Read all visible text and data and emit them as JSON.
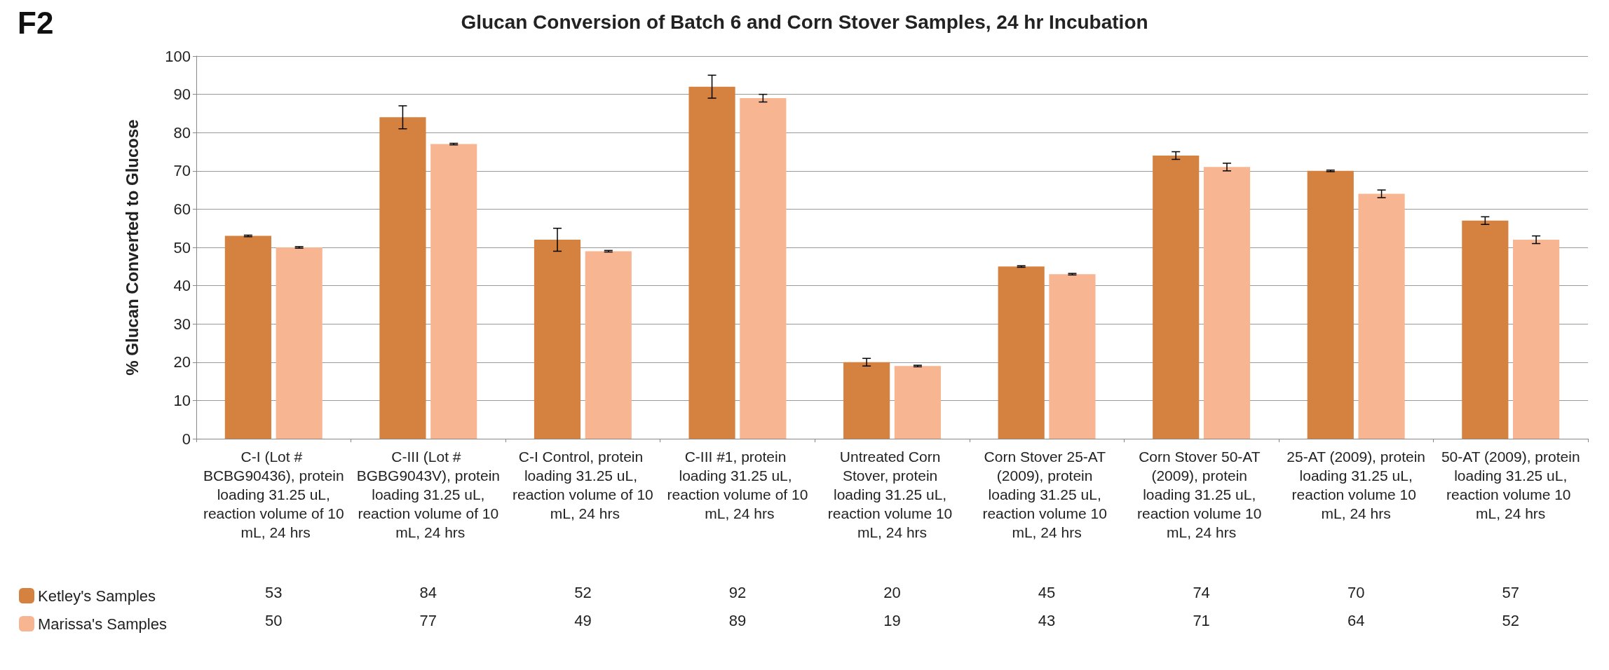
{
  "chart_data": {
    "type": "bar",
    "title": "Glucan Conversion of Batch 6 and Corn Stover Samples, 24 hr Incubation",
    "ylabel": "% Glucan Converted to Glucose",
    "annotations": [
      "F2"
    ],
    "categories": [
      "C-I (Lot # BCBG90436), protein loading 31.25 uL, reaction volume of 10 mL, 24 hrs",
      "C-III (Lot # BGBG9043V), protein loading 31.25 uL, reaction volume of 10 mL, 24 hrs",
      "C-I Control, protein loading 31.25 uL, reaction volume of 10 mL, 24 hrs",
      "C-III #1, protein loading 31.25 uL, reaction volume of 10 mL, 24 hrs",
      "Untreated Corn Stover, protein loading 31.25 uL, reaction volume 10 mL, 24 hrs",
      "Corn Stover 25-AT (2009), protein loading 31.25 uL, reaction volume 10 mL, 24 hrs",
      "Corn Stover 50-AT (2009), protein loading 31.25 uL, reaction volume 10 mL, 24 hrs",
      "25-AT (2009), protein loading 31.25 uL, reaction volume 10 mL, 24 hrs",
      "50-AT (2009), protein loading 31.25 uL, reaction volume 10 mL, 24 hrs"
    ],
    "series": [
      {
        "name": "Ketley's Samples",
        "color": "#d5813f",
        "values": [
          53,
          84,
          52,
          92,
          20,
          45,
          74,
          70,
          57
        ],
        "errors": [
          0.2,
          3,
          3,
          3,
          1,
          0.2,
          1,
          0.2,
          1
        ]
      },
      {
        "name": "Marissa's Samples",
        "color": "#f7b591",
        "values": [
          50,
          77,
          49,
          89,
          19,
          43,
          71,
          64,
          52
        ],
        "errors": [
          0.2,
          0.2,
          0.2,
          1,
          0.2,
          0.2,
          1,
          1,
          1
        ]
      }
    ],
    "ylim": [
      0,
      100
    ],
    "yticks": [
      0,
      10,
      20,
      30,
      40,
      50,
      60,
      70,
      80,
      90,
      100
    ],
    "grid": "y",
    "legend": "bottom left",
    "data_labels": true
  }
}
